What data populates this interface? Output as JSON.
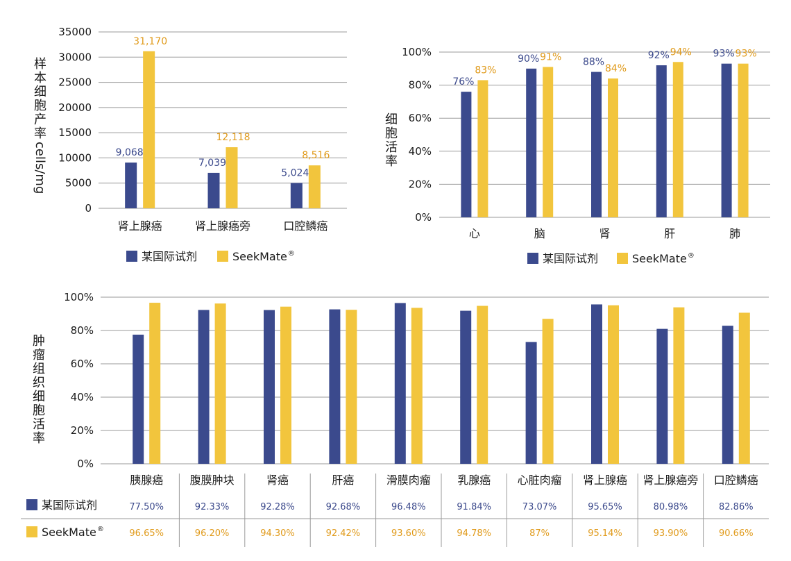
{
  "colors": {
    "reagent": "#3b4a8d",
    "seekmate": "#f2c53d",
    "grid": "#9a9a9a",
    "label_blue": "#3c4a8c",
    "label_gold": "#e09a1a"
  },
  "legend": {
    "reagent": "某国际试剂",
    "seekmate": "SeekMate",
    "seekmate_mark": "®"
  },
  "chart_data": [
    {
      "type": "bar",
      "ylabel": "样本细胞产率cells/mg",
      "ylim": [
        0,
        35000
      ],
      "yticks": [
        "0",
        "5000",
        "10000",
        "15000",
        "20000",
        "25000",
        "30000",
        "35000"
      ],
      "categories": [
        "肾上腺癌",
        "肾上腺癌旁",
        "口腔鳞癌"
      ],
      "series": [
        {
          "name": "某国际试剂",
          "values": [
            9068,
            7039,
            5024
          ],
          "labels": [
            "9,068",
            "7,039",
            "5,024"
          ]
        },
        {
          "name": "SeekMate®",
          "values": [
            31170,
            12118,
            8516
          ],
          "labels": [
            "31,170",
            "12,118",
            "8,516"
          ]
        }
      ],
      "legend": "bottom"
    },
    {
      "type": "bar",
      "ylabel": "细胞活率",
      "ylim": [
        0,
        100
      ],
      "yticks": [
        "0%",
        "20%",
        "40%",
        "60%",
        "80%",
        "100%"
      ],
      "categories": [
        "心",
        "脑",
        "肾",
        "肝",
        "肺"
      ],
      "series": [
        {
          "name": "某国际试剂",
          "values": [
            76,
            90,
            88,
            92,
            93
          ],
          "labels": [
            "76%",
            "90%",
            "88%",
            "92%",
            "93%"
          ]
        },
        {
          "name": "SeekMate®",
          "values": [
            83,
            91,
            84,
            94,
            93
          ],
          "labels": [
            "83%",
            "91%",
            "84%",
            "94%",
            "93%"
          ]
        }
      ],
      "legend": "bottom"
    },
    {
      "type": "bar",
      "ylabel": "肿瘤组织细胞活率",
      "ylim": [
        0,
        100
      ],
      "yticks": [
        "0%",
        "20%",
        "40%",
        "60%",
        "80%",
        "100%"
      ],
      "categories": [
        "胰腺癌",
        "腹膜肿块",
        "肾癌",
        "肝癌",
        "滑膜肉瘤",
        "乳腺癌",
        "心脏肉瘤",
        "肾上腺癌",
        "肾上腺癌旁",
        "口腔鳞癌"
      ],
      "series": [
        {
          "name": "某国际试剂",
          "values": [
            77.5,
            92.33,
            92.28,
            92.68,
            96.48,
            91.84,
            73.07,
            95.65,
            80.98,
            82.86
          ],
          "labels": [
            "77.50%",
            "92.33%",
            "92.28%",
            "92.68%",
            "96.48%",
            "91.84%",
            "73.07%",
            "95.65%",
            "80.98%",
            "82.86%"
          ]
        },
        {
          "name": "SeekMate®",
          "values": [
            96.65,
            96.2,
            94.3,
            92.42,
            93.6,
            94.78,
            87,
            95.14,
            93.9,
            90.66
          ],
          "labels": [
            "96.65%",
            "96.20%",
            "94.30%",
            "92.42%",
            "93.60%",
            "94.78%",
            "87%",
            "95.14%",
            "93.90%",
            "90.66%"
          ]
        }
      ],
      "legend": "table-left"
    }
  ]
}
